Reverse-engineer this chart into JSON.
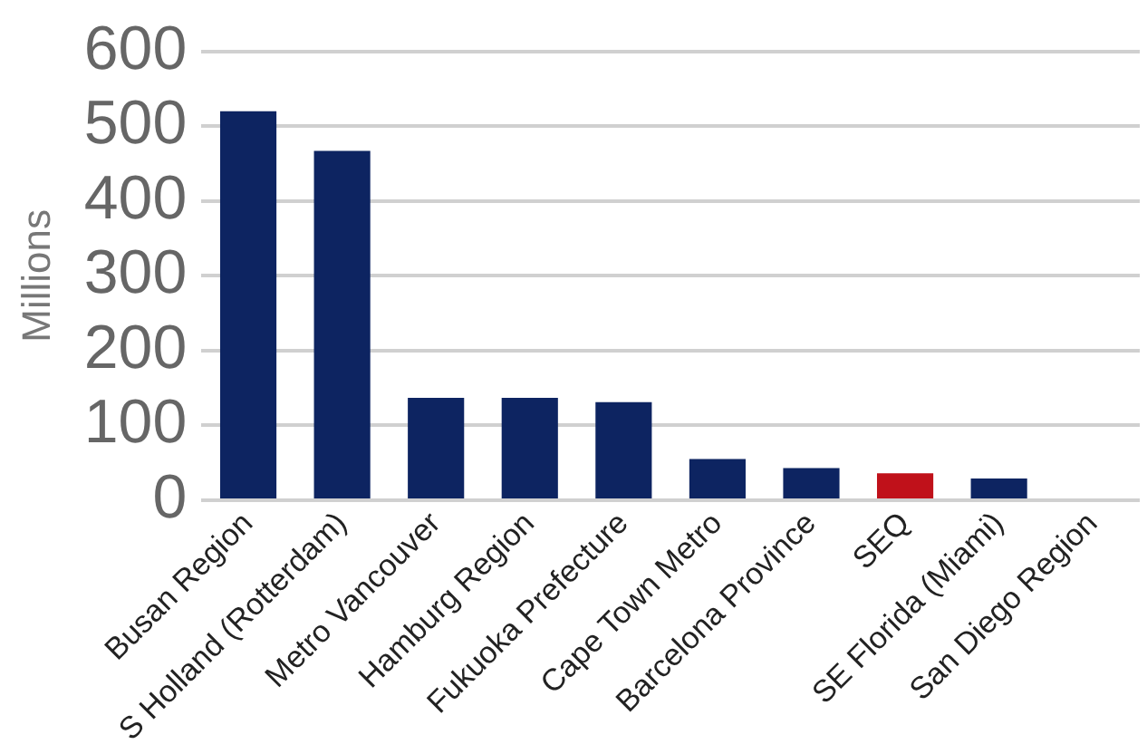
{
  "chart_data": {
    "type": "bar",
    "ylabel": "Millions",
    "categories": [
      "Busan Region",
      "S Holland (Rotterdam)",
      "Metro Vancouver",
      "Hamburg Region",
      "Fukuoka Prefecture",
      "Cape Town Metro",
      "Barcelona Province",
      "SEQ",
      "SE Florida (Miami)",
      "San Diego Region"
    ],
    "values": [
      520,
      467,
      137,
      137,
      131,
      55,
      43,
      36,
      29,
      null
    ],
    "colors": [
      "#0d2461",
      "#0d2461",
      "#0d2461",
      "#0d2461",
      "#0d2461",
      "#0d2461",
      "#0d2461",
      "#c0111a",
      "#0d2461",
      "#0d2461"
    ],
    "ylim": [
      0,
      600
    ],
    "yticks": [
      0,
      100,
      200,
      300,
      400,
      500,
      600
    ],
    "grid": "y",
    "legend": false
  }
}
